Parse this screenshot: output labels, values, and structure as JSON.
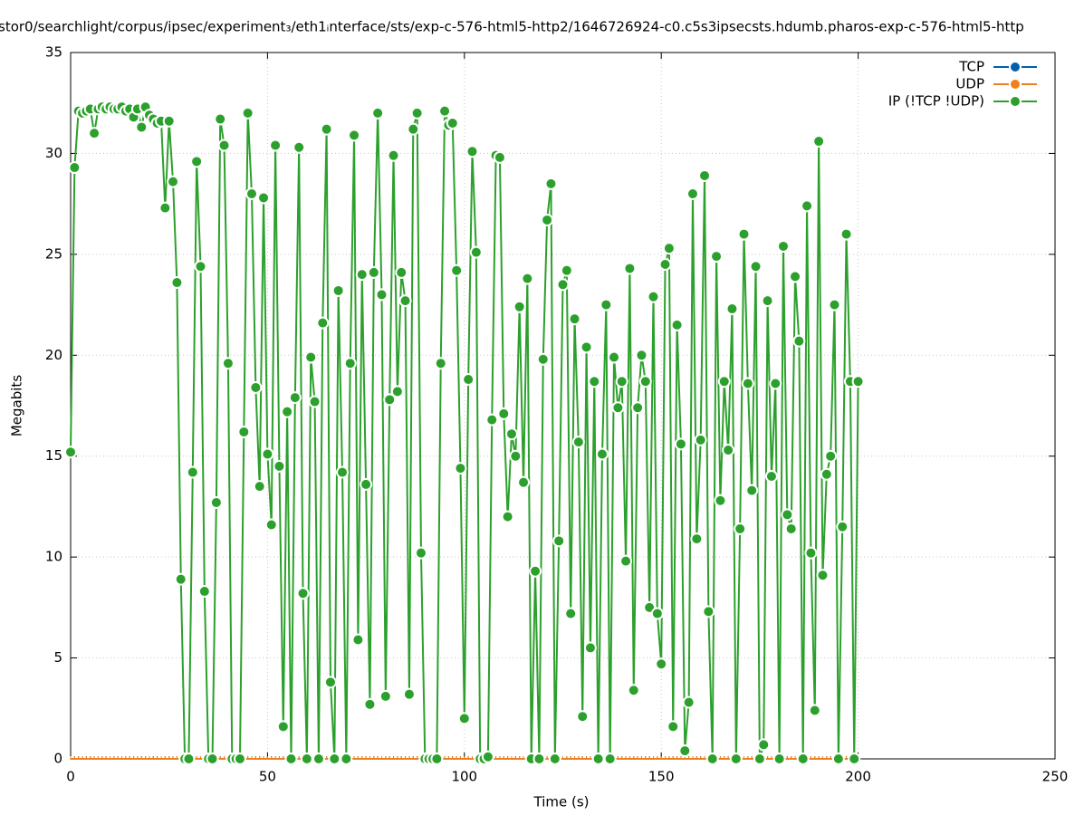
{
  "chart_data": {
    "type": "line",
    "title": "stor0/searchlight/corpus/ipsec/experiment₃/eth1ᵢnterface/sts/exp-c-576-html5-http2/1646726924-c0.c5s3ipsecsts.hdumb.pharos-exp-c-576-html5-http",
    "x_label": "Time (s)",
    "y_label": "Megabits",
    "xlim": [
      0,
      250
    ],
    "xticks": [
      0,
      50,
      100,
      150,
      200,
      250
    ],
    "ylim": [
      0,
      35
    ],
    "yticks": [
      0,
      5,
      10,
      15,
      20,
      25,
      30,
      35
    ],
    "grid": true,
    "legend": "top-right",
    "x": [
      0,
      1,
      2,
      3,
      4,
      5,
      6,
      7,
      8,
      9,
      10,
      11,
      12,
      13,
      14,
      15,
      16,
      17,
      18,
      19,
      20,
      21,
      22,
      23,
      24,
      25,
      26,
      27,
      28,
      29,
      30,
      31,
      32,
      33,
      34,
      35,
      36,
      37,
      38,
      39,
      40,
      41,
      42,
      43,
      44,
      45,
      46,
      47,
      48,
      49,
      50,
      51,
      52,
      53,
      54,
      55,
      56,
      57,
      58,
      59,
      60,
      61,
      62,
      63,
      64,
      65,
      66,
      67,
      68,
      69,
      70,
      71,
      72,
      73,
      74,
      75,
      76,
      77,
      78,
      79,
      80,
      81,
      82,
      83,
      84,
      85,
      86,
      87,
      88,
      89,
      90,
      91,
      92,
      93,
      94,
      95,
      96,
      97,
      98,
      99,
      100,
      101,
      102,
      103,
      104,
      105,
      106,
      107,
      108,
      109,
      110,
      111,
      112,
      113,
      114,
      115,
      116,
      117,
      118,
      119,
      120,
      121,
      122,
      123,
      124,
      125,
      126,
      127,
      128,
      129,
      130,
      131,
      132,
      133,
      134,
      135,
      136,
      137,
      138,
      139,
      140,
      141,
      142,
      143,
      144,
      145,
      146,
      147,
      148,
      149,
      150,
      151,
      152,
      153,
      154,
      155,
      156,
      157,
      158,
      159,
      160,
      161,
      162,
      163,
      164,
      165,
      166,
      167,
      168,
      169,
      170,
      171,
      172,
      173,
      174,
      175,
      176,
      177,
      178,
      179,
      180,
      181,
      182,
      183,
      184,
      185,
      186,
      187,
      188,
      189,
      190,
      191,
      192,
      193,
      194,
      195,
      196,
      197,
      198,
      199,
      200
    ],
    "series": [
      {
        "name": "TCP",
        "color": "#0060ad",
        "values": [
          0,
          0,
          0,
          0,
          0,
          0,
          0,
          0,
          0,
          0,
          0,
          0,
          0,
          0,
          0,
          0,
          0,
          0,
          0,
          0,
          0,
          0,
          0,
          0,
          0,
          0,
          0,
          0,
          0,
          0,
          0,
          0,
          0,
          0,
          0,
          0,
          0,
          0,
          0,
          0,
          0,
          0,
          0,
          0,
          0,
          0,
          0,
          0,
          0,
          0,
          0,
          0,
          0,
          0,
          0,
          0,
          0,
          0,
          0,
          0,
          0,
          0,
          0,
          0,
          0,
          0,
          0,
          0,
          0,
          0,
          0,
          0,
          0,
          0,
          0,
          0,
          0,
          0,
          0,
          0,
          0,
          0,
          0,
          0,
          0,
          0,
          0,
          0,
          0,
          0,
          0,
          0,
          0,
          0,
          0,
          0,
          0,
          0,
          0,
          0,
          0,
          0,
          0,
          0,
          0,
          0,
          0,
          0,
          0,
          0,
          0,
          0,
          0,
          0,
          0,
          0,
          0,
          0,
          0,
          0,
          0,
          0,
          0,
          0,
          0,
          0,
          0,
          0,
          0,
          0,
          0,
          0,
          0,
          0,
          0,
          0,
          0,
          0,
          0,
          0,
          0,
          0,
          0,
          0,
          0,
          0,
          0,
          0,
          0,
          0,
          0,
          0,
          0,
          0,
          0,
          0,
          0,
          0,
          0,
          0,
          0,
          0,
          0,
          0,
          0,
          0,
          0,
          0,
          0,
          0,
          0,
          0,
          0,
          0,
          0,
          0,
          0,
          0,
          0,
          0,
          0,
          0,
          0,
          0,
          0,
          0,
          0,
          0,
          0,
          0,
          0,
          0,
          0,
          0,
          0,
          0,
          0,
          0,
          0,
          0,
          0
        ]
      },
      {
        "name": "UDP",
        "color": "#f07f1e",
        "values": [
          0,
          0,
          0,
          0,
          0,
          0,
          0,
          0,
          0,
          0,
          0,
          0,
          0,
          0,
          0,
          0,
          0,
          0,
          0,
          0,
          0,
          0,
          0,
          0,
          0,
          0,
          0,
          0,
          0,
          0,
          0,
          0,
          0,
          0,
          0,
          0,
          0,
          0,
          0,
          0,
          0,
          0,
          0,
          0,
          0,
          0,
          0,
          0,
          0,
          0,
          0,
          0,
          0,
          0,
          0,
          0,
          0,
          0,
          0,
          0,
          0,
          0,
          0,
          0,
          0,
          0,
          0,
          0,
          0,
          0,
          0,
          0,
          0,
          0,
          0,
          0,
          0,
          0,
          0,
          0,
          0,
          0,
          0,
          0,
          0,
          0,
          0,
          0,
          0,
          0,
          0,
          0,
          0,
          0,
          0,
          0,
          0,
          0,
          0,
          0,
          0,
          0,
          0,
          0,
          0,
          0,
          0,
          0,
          0,
          0,
          0,
          0,
          0,
          0,
          0,
          0,
          0,
          0,
          0,
          0,
          0,
          0,
          0,
          0,
          0,
          0,
          0,
          0,
          0,
          0,
          0,
          0,
          0,
          0,
          0,
          0,
          0,
          0,
          0,
          0,
          0,
          0,
          0,
          0,
          0,
          0,
          0,
          0,
          0,
          0,
          0,
          0,
          0,
          0,
          0,
          0,
          0,
          0,
          0,
          0,
          0,
          0,
          0,
          0,
          0,
          0,
          0,
          0,
          0,
          0,
          0,
          0,
          0,
          0,
          0,
          0,
          0,
          0,
          0,
          0,
          0,
          0,
          0,
          0,
          0,
          0,
          0,
          0,
          0,
          0,
          0,
          0,
          0,
          0,
          0,
          0,
          0,
          0,
          0,
          0,
          0
        ]
      },
      {
        "name": "IP (!TCP  !UDP)",
        "color": "#2ca02c",
        "values": [
          15.2,
          29.3,
          32.1,
          32.0,
          32.1,
          32.2,
          31.0,
          32.2,
          32.3,
          32.2,
          32.3,
          32.2,
          32.2,
          32.3,
          32.1,
          32.2,
          31.8,
          32.2,
          31.3,
          32.3,
          31.9,
          31.7,
          31.5,
          31.6,
          27.3,
          31.6,
          28.6,
          23.6,
          8.9,
          0,
          0,
          14.2,
          29.6,
          24.4,
          8.3,
          0,
          0,
          12.7,
          31.7,
          30.4,
          19.6,
          0,
          0,
          0,
          16.2,
          32.0,
          28.0,
          18.4,
          13.5,
          27.8,
          15.1,
          11.6,
          30.4,
          14.5,
          1.6,
          17.2,
          0,
          17.9,
          30.3,
          8.2,
          0,
          19.9,
          17.7,
          0,
          21.6,
          31.2,
          3.8,
          0,
          23.2,
          14.2,
          0,
          19.6,
          30.9,
          5.9,
          24.0,
          13.6,
          2.7,
          24.1,
          32.0,
          23.0,
          3.1,
          17.8,
          29.9,
          18.2,
          24.1,
          22.7,
          3.2,
          31.2,
          32.0,
          10.2,
          0,
          0,
          0,
          0,
          19.6,
          32.1,
          31.4,
          31.5,
          24.2,
          14.4,
          2.0,
          18.8,
          30.1,
          25.1,
          0,
          0,
          0.1,
          16.8,
          29.9,
          29.8,
          17.1,
          12.0,
          16.1,
          15.0,
          22.4,
          13.7,
          23.8,
          0,
          9.3,
          0,
          19.8,
          26.7,
          28.5,
          0,
          10.8,
          23.5,
          24.2,
          7.2,
          21.8,
          15.7,
          2.1,
          20.4,
          5.5,
          18.7,
          0,
          15.1,
          22.5,
          0,
          19.9,
          17.4,
          18.7,
          9.8,
          24.3,
          3.4,
          17.4,
          20.0,
          18.7,
          7.5,
          22.9,
          7.2,
          4.7,
          24.5,
          25.3,
          1.6,
          21.5,
          15.6,
          0.4,
          2.8,
          28.0,
          10.9,
          15.8,
          28.9,
          7.3,
          0,
          24.9,
          12.8,
          18.7,
          15.3,
          22.3,
          0,
          11.4,
          26.0,
          18.6,
          13.3,
          24.4,
          0,
          0.7,
          22.7,
          14.0,
          18.6,
          0,
          25.4,
          12.1,
          11.4,
          23.9,
          20.7,
          0,
          27.4,
          10.2,
          2.4,
          30.6,
          9.1,
          14.1,
          15.0,
          22.5,
          0,
          11.5,
          26.0,
          18.7,
          0,
          18.7
        ]
      }
    ]
  }
}
